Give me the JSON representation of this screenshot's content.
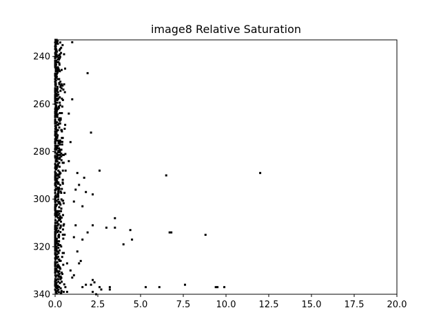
{
  "chart_data": {
    "type": "scatter",
    "title": "image8 Relative Saturation",
    "xlabel": "",
    "ylabel": "",
    "xlim": [
      0,
      20
    ],
    "ylim": [
      340,
      233
    ],
    "y_inverted": true,
    "grid": false,
    "x_ticks": [
      0.0,
      2.5,
      5.0,
      7.5,
      10.0,
      12.5,
      15.0,
      17.5,
      20.0
    ],
    "x_tick_labels": [
      "0.0",
      "2.5",
      "5.0",
      "7.5",
      "10.0",
      "12.5",
      "15.0",
      "17.5",
      "20.0"
    ],
    "y_ticks": [
      240,
      260,
      280,
      300,
      320,
      340
    ],
    "y_tick_labels": [
      "240",
      "260",
      "280",
      "300",
      "320",
      "340"
    ],
    "marker_color": "#000000",
    "dense_band": {
      "x_range": [
        0.0,
        0.45
      ],
      "y_range": [
        233,
        340
      ],
      "note_density": "very high"
    },
    "points": [
      [
        1.0,
        234
      ],
      [
        1.9,
        247
      ],
      [
        2.1,
        272
      ],
      [
        1.0,
        258
      ],
      [
        0.8,
        264
      ],
      [
        0.9,
        276
      ],
      [
        0.6,
        281
      ],
      [
        0.8,
        284
      ],
      [
        1.3,
        289
      ],
      [
        2.6,
        288
      ],
      [
        6.5,
        290
      ],
      [
        12.0,
        289
      ],
      [
        1.7,
        291
      ],
      [
        1.4,
        294
      ],
      [
        1.2,
        296
      ],
      [
        1.8,
        297
      ],
      [
        2.2,
        298
      ],
      [
        1.1,
        301
      ],
      [
        1.6,
        303
      ],
      [
        3.5,
        308
      ],
      [
        1.2,
        311
      ],
      [
        2.2,
        311
      ],
      [
        3.0,
        312
      ],
      [
        3.5,
        312
      ],
      [
        4.4,
        313
      ],
      [
        1.9,
        314
      ],
      [
        6.7,
        314
      ],
      [
        6.8,
        314
      ],
      [
        8.8,
        315
      ],
      [
        1.1,
        316
      ],
      [
        1.6,
        317
      ],
      [
        4.5,
        317
      ],
      [
        4.0,
        319
      ],
      [
        1.3,
        322
      ],
      [
        1.5,
        326
      ],
      [
        1.4,
        327
      ],
      [
        0.9,
        330
      ],
      [
        1.0,
        333
      ],
      [
        2.2,
        334
      ],
      [
        2.3,
        335
      ],
      [
        1.8,
        336
      ],
      [
        2.1,
        336
      ],
      [
        7.6,
        336
      ],
      [
        1.6,
        337
      ],
      [
        2.6,
        337
      ],
      [
        3.2,
        337
      ],
      [
        5.3,
        337
      ],
      [
        6.1,
        337
      ],
      [
        9.4,
        337
      ],
      [
        9.5,
        337
      ],
      [
        9.9,
        337
      ],
      [
        3.2,
        338
      ],
      [
        2.2,
        339
      ],
      [
        2.7,
        338
      ],
      [
        0.7,
        339
      ],
      [
        2.4,
        340
      ],
      [
        0.5,
        339
      ],
      [
        0.6,
        337
      ],
      [
        1.1,
        332
      ],
      [
        0.7,
        327
      ]
    ]
  }
}
